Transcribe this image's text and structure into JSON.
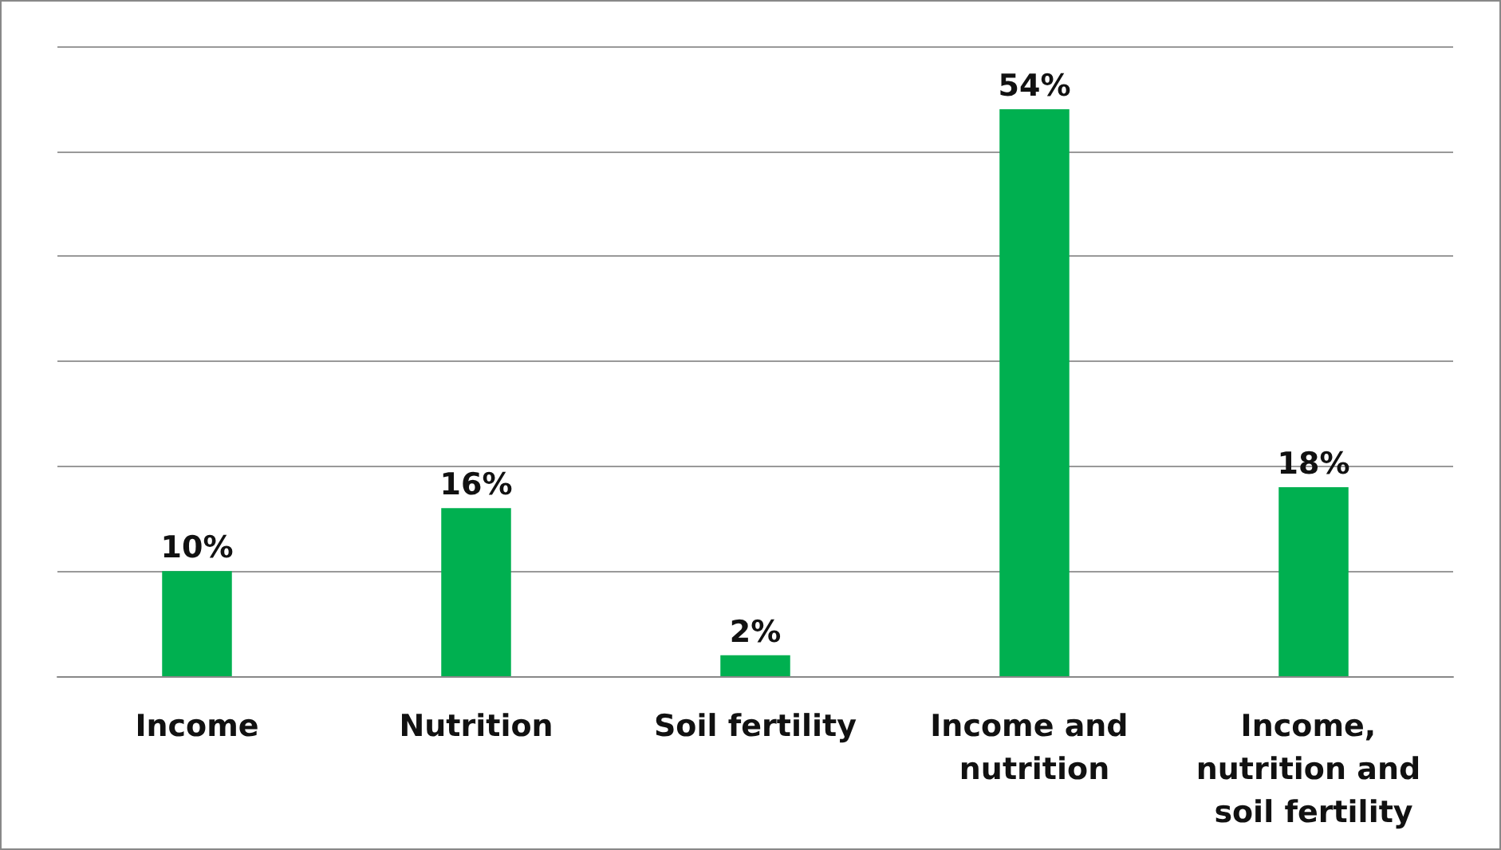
{
  "chart_data": {
    "type": "bar",
    "categories": [
      "Income",
      "Nutrition",
      "Soil fertility",
      "Income and nutrition",
      "Income, nutrition and soil fertility"
    ],
    "values": [
      10,
      16,
      2,
      54,
      18
    ],
    "value_labels": [
      "10%",
      "16%",
      "2%",
      "54%",
      "18%"
    ],
    "color": "#00b050",
    "ylim": [
      0,
      60
    ],
    "yticks": [
      {
        "value": 0,
        "label": null
      },
      {
        "value": 10,
        "label": null
      },
      {
        "value": 20,
        "label": null
      },
      {
        "value": 30,
        "label": null
      },
      {
        "value": 40,
        "label": null
      },
      {
        "value": 50,
        "label": null
      },
      {
        "value": 60,
        "label": null
      }
    ],
    "grid": "y",
    "tick_labels": "x"
  }
}
